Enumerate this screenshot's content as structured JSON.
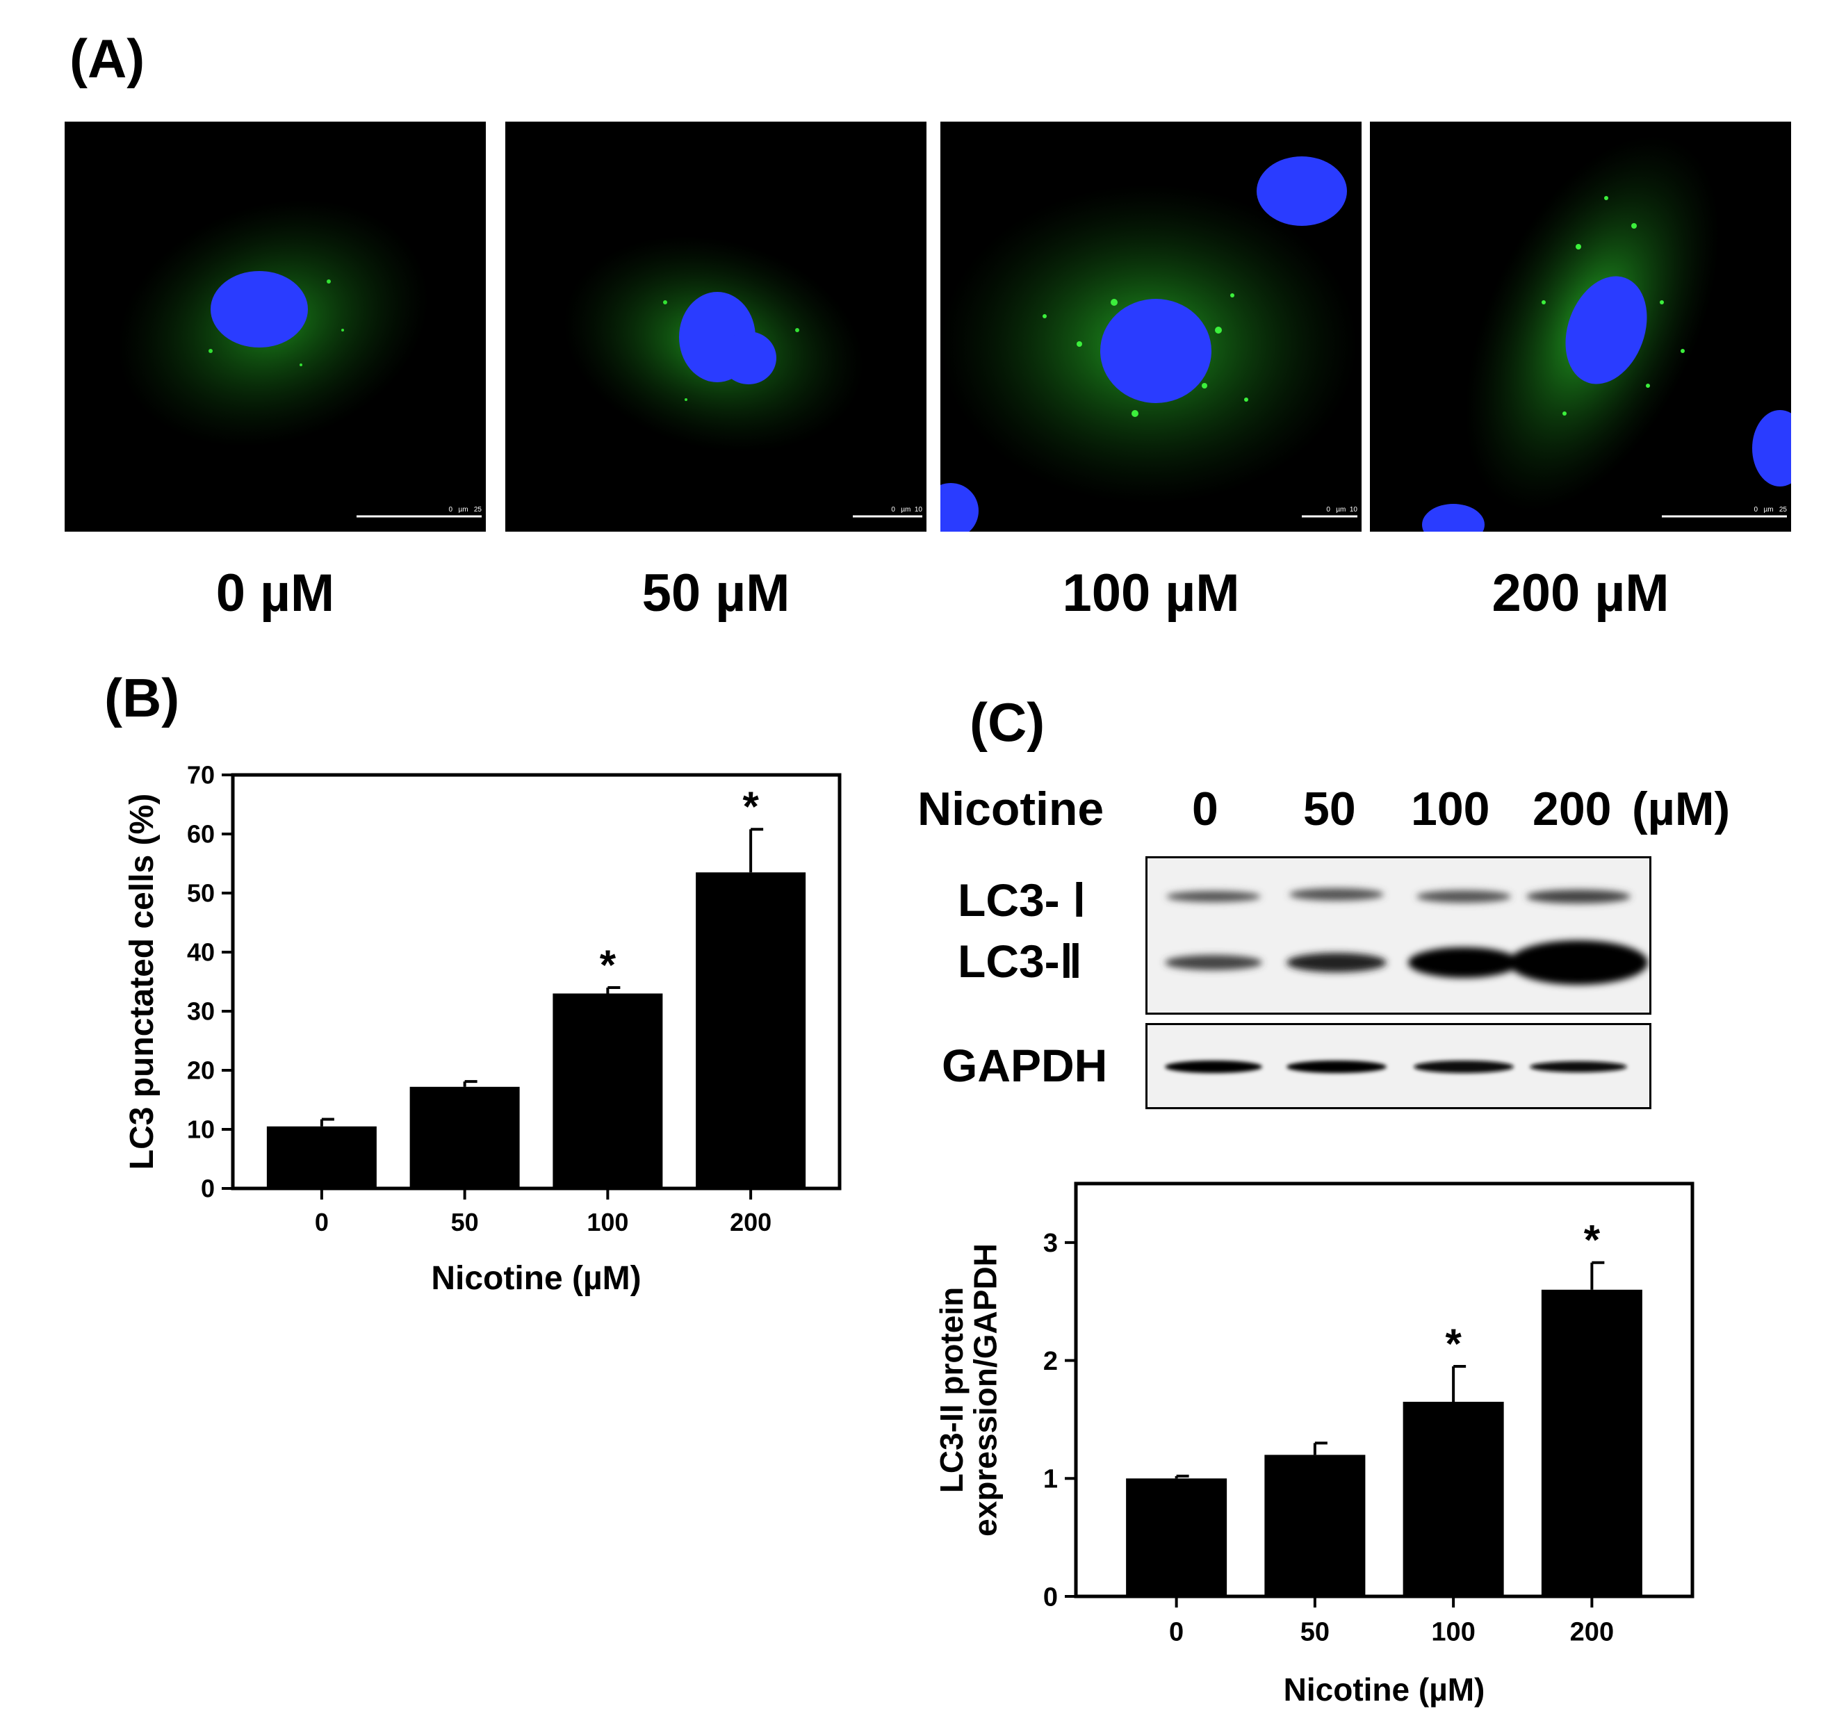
{
  "panels": {
    "a_label": "(A)",
    "b_label": "(B)",
    "c_label": "(C)"
  },
  "micrographs": [
    {
      "label": "0 µM",
      "scale_text": "0   µm   25"
    },
    {
      "label": "50 µM",
      "scale_text": "0   µm  10"
    },
    {
      "label": "100 µM",
      "scale_text": "0   µm  10"
    },
    {
      "label": "200 µM",
      "scale_text": "0   µm   25"
    }
  ],
  "colors": {
    "bar": "#000000",
    "nucleus": "#2a3cff",
    "lc3_signal": "#2fd12f",
    "background": "#000000"
  },
  "blot": {
    "treatment_label": "Nicotine",
    "doses": [
      "0",
      "50",
      "100",
      "200"
    ],
    "unit": "(µM)",
    "bands": [
      "LC3- Ⅰ",
      "LC3-Ⅱ"
    ],
    "loading_control": "GAPDH"
  },
  "chart_data": [
    {
      "type": "bar",
      "categories": [
        "0",
        "50",
        "100",
        "200"
      ],
      "values": [
        10.5,
        17.2,
        33.0,
        53.5
      ],
      "errors": [
        1.2,
        0.9,
        1.0,
        7.3
      ],
      "significance": [
        "",
        "",
        "*",
        "*"
      ],
      "xlabel": "Nicotine (µM)",
      "ylabel": "LC3 punctated cells (%)",
      "ylim": [
        0,
        70
      ],
      "yticks": [
        0,
        10,
        20,
        30,
        40,
        50,
        60,
        70
      ]
    },
    {
      "type": "bar",
      "categories": [
        "0",
        "50",
        "100",
        "200"
      ],
      "values": [
        1.0,
        1.2,
        1.65,
        2.6
      ],
      "errors": [
        0.02,
        0.1,
        0.3,
        0.23
      ],
      "significance": [
        "",
        "",
        "*",
        "*"
      ],
      "xlabel": "Nicotine (µM)",
      "ylabel": "LC3-II protein expression/GAPDH",
      "ylim": [
        0,
        3.5
      ],
      "yticks": [
        0,
        1,
        2,
        3
      ]
    }
  ]
}
